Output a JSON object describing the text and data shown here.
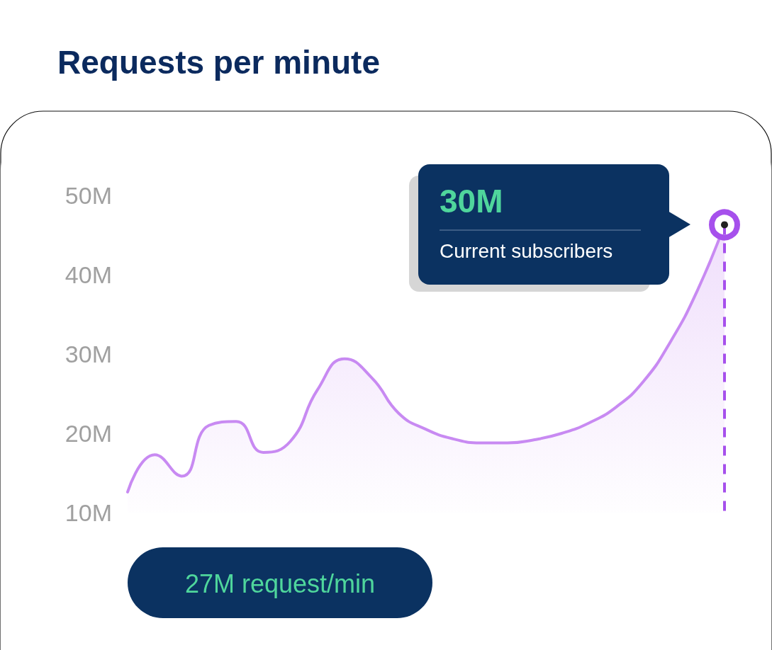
{
  "chart_data": {
    "type": "area",
    "title": "Requests per minute",
    "categories": [
      null,
      null,
      null,
      null,
      null,
      null,
      null,
      null,
      null,
      null,
      null,
      null,
      null,
      null,
      null,
      null,
      null,
      null,
      null,
      null,
      null,
      null,
      null
    ],
    "series": [
      {
        "color": "#c88af2",
        "values": [
          12.6,
          17.3,
          14.6,
          21,
          21.5,
          17.6,
          19,
          25.5,
          29.4,
          27,
          22.5,
          20.5,
          19.3,
          18.8,
          18.8,
          19.2,
          20,
          21.3,
          23.3,
          26.5,
          31.5,
          38,
          46.3
        ]
      }
    ],
    "ylim": [
      10,
      50
    ],
    "yticks": [
      {
        "value": 10,
        "label": "10M"
      },
      {
        "value": 20,
        "label": "20M"
      },
      {
        "value": 30,
        "label": "30M"
      },
      {
        "value": 40,
        "label": "40M"
      },
      {
        "value": 50,
        "label": "50M"
      }
    ],
    "grid": false,
    "marker": "none",
    "line_style": "solid",
    "annotations": [
      "30M",
      "Current subscribers",
      "27M request/min"
    ]
  }
}
